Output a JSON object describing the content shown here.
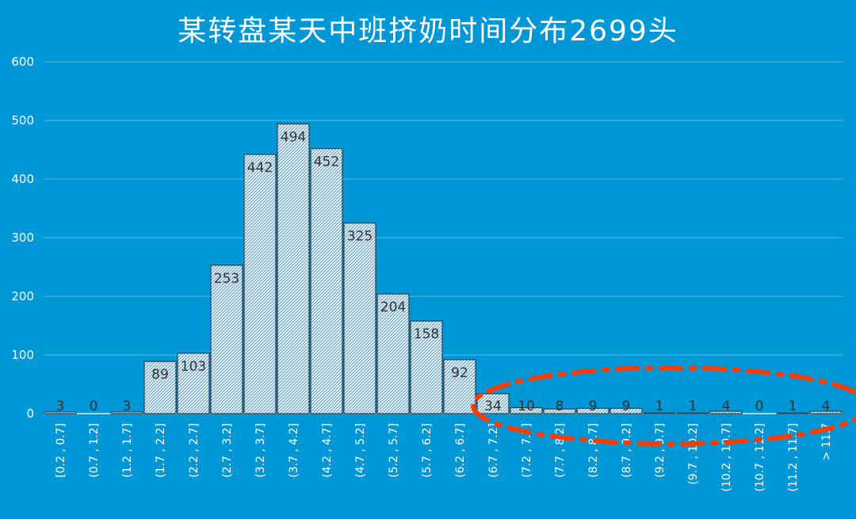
{
  "colors": {
    "background": "#0097d6",
    "bar_fill": "#dff1fa",
    "bar_stroke": "#2c3e50",
    "annotation": "#ff3b00",
    "gridline": "#5bbde6"
  },
  "chart_data": {
    "type": "bar",
    "title": "某转盘某天中班挤奶时间分布2699头",
    "xlabel": "",
    "ylabel": "",
    "ylim": [
      0,
      600
    ],
    "yticks": [
      0,
      100,
      200,
      300,
      400,
      500,
      600
    ],
    "grid": true,
    "legend": "none",
    "categories": [
      "[0.2 , 0.7]",
      "(0.7 , 1.2]",
      "(1.2 , 1.7]",
      "(1.7 , 2.2]",
      "(2.2 , 2.7]",
      "(2.7 , 3.2]",
      "(3.2 , 3.7]",
      "(3.7 , 4.2]",
      "(4.2 , 4.7]",
      "(4.7 , 5.2]",
      "(5.2 , 5.7]",
      "(5.7 , 6.2]",
      "(6.2 , 6.7]",
      "(6.7 , 7.2]",
      "(7.2 , 7.7]",
      "(7.7 , 8.2]",
      "(8.2 , 8.7]",
      "(8.7 , 9.2]",
      "(9.2 , 9.7]",
      "(9.7 , 10.2]",
      "(10.2 , 10.7]",
      "(10.7 , 11.2]",
      "(11.2 , 11.7]",
      "> 11.7"
    ],
    "values": [
      3,
      0,
      3,
      89,
      103,
      253,
      442,
      494,
      452,
      325,
      204,
      158,
      92,
      34,
      10,
      8,
      9,
      9,
      1,
      1,
      4,
      0,
      1,
      4
    ],
    "annotation": {
      "shape": "dash-dot ellipse",
      "color": "#ff3b00",
      "highlights_categories_from": "(6.7 , 7.2]",
      "highlights_categories_to": "> 11.7"
    }
  }
}
